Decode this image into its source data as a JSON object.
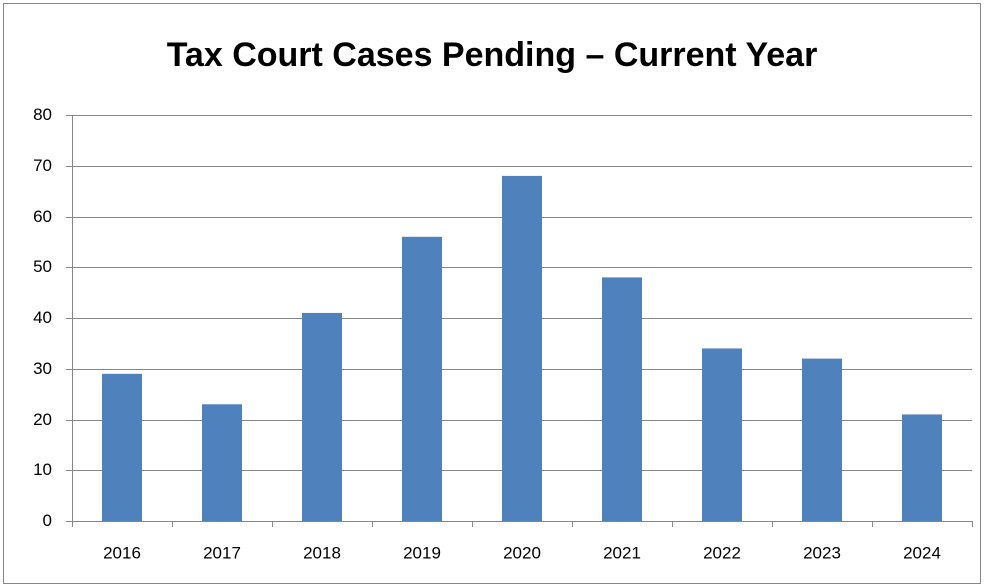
{
  "chart_data": {
    "type": "bar",
    "title": "Tax Court Cases Pending – Current Year",
    "categories": [
      "2016",
      "2017",
      "2018",
      "2019",
      "2020",
      "2021",
      "2022",
      "2023",
      "2024"
    ],
    "values": [
      29,
      23,
      41,
      56,
      68,
      48,
      34,
      32,
      21
    ],
    "color": "#4f81bd",
    "ylim": [
      0,
      80
    ],
    "yticks": [
      0,
      10,
      20,
      30,
      40,
      50,
      60,
      70,
      80
    ],
    "grid": true
  }
}
